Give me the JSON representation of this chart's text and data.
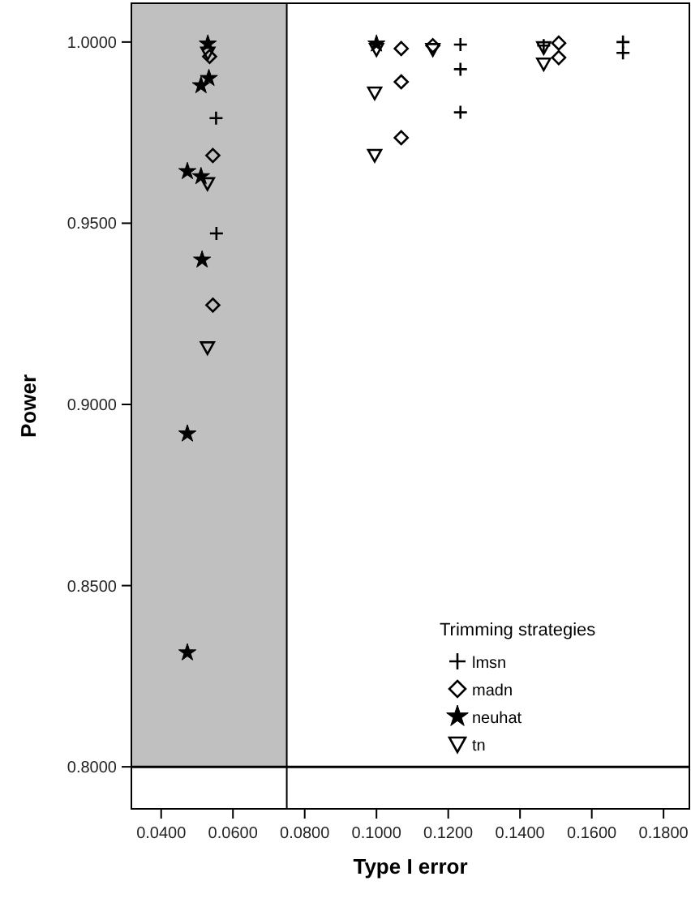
{
  "chart_data": {
    "type": "scatter",
    "xlabel": "Type I error",
    "ylabel": "Power",
    "legend_title": "Trimming strategies",
    "legend": "bottom right",
    "xlim": [
      0.0317,
      0.1872
    ],
    "ylim": [
      0.7884,
      1.0107
    ],
    "xticks": [
      {
        "value": 0.04,
        "label": "0.0400"
      },
      {
        "value": 0.06,
        "label": "0.0600"
      },
      {
        "value": 0.08,
        "label": "0.0800"
      },
      {
        "value": 0.1,
        "label": "0.1000"
      },
      {
        "value": 0.12,
        "label": "0.1200"
      },
      {
        "value": 0.14,
        "label": "0.1400"
      },
      {
        "value": 0.16,
        "label": "0.1600"
      },
      {
        "value": 0.18,
        "label": "0.1800"
      }
    ],
    "yticks": [
      {
        "value": 0.8,
        "label": "0.8000"
      },
      {
        "value": 0.85,
        "label": "0.8500"
      },
      {
        "value": 0.9,
        "label": "0.9000"
      },
      {
        "value": 0.95,
        "label": "0.9500"
      },
      {
        "value": 1.0,
        "label": "1.0000"
      }
    ],
    "ref_lines": [
      {
        "axis": "x",
        "value": 0.075,
        "color": "#000000"
      },
      {
        "axis": "y",
        "value": 0.8,
        "color": "#000000"
      }
    ],
    "bands": [
      {
        "axis": "x",
        "from": 0.0317,
        "to": 0.075,
        "color": "#c0c0c0"
      }
    ],
    "series": [
      {
        "name": "lmsn",
        "color": "#000000",
        "marker": "cross",
        "x": [
          0.0553,
          0.0554,
          0.1234,
          0.1234,
          0.1234,
          0.1466,
          0.1687,
          0.1687
        ],
        "values": [
          0.979,
          0.9472,
          0.9993,
          0.9925,
          0.9806,
          0.999,
          1.0,
          0.997
        ]
      },
      {
        "name": "madn",
        "color": "#000000",
        "marker": "diamond",
        "x": [
          0.0535,
          0.0544,
          0.0544,
          0.1069,
          0.1069,
          0.1069,
          0.1157,
          0.1508,
          0.1508
        ],
        "values": [
          0.996,
          0.9687,
          0.9274,
          0.9982,
          0.989,
          0.9736,
          0.999,
          0.9997,
          0.9957
        ]
      },
      {
        "name": "neuhat",
        "color": "#000000",
        "marker": "star",
        "x": [
          0.053,
          0.0533,
          0.0511,
          0.0473,
          0.0511,
          0.0514,
          0.0473,
          0.0473,
          0.1
        ],
        "values": [
          0.9995,
          0.99,
          0.988,
          0.9643,
          0.9629,
          0.9399,
          0.8919,
          0.8315,
          0.9995
        ]
      },
      {
        "name": "tn",
        "color": "#000000",
        "marker": "triangle",
        "x": [
          0.053,
          0.0529,
          0.0529,
          0.1,
          0.0995,
          0.0995,
          0.1157,
          0.1466,
          0.1466
        ],
        "values": [
          0.997,
          0.961,
          0.9157,
          0.998,
          0.986,
          0.9688,
          0.998,
          0.9985,
          0.994
        ]
      }
    ]
  }
}
